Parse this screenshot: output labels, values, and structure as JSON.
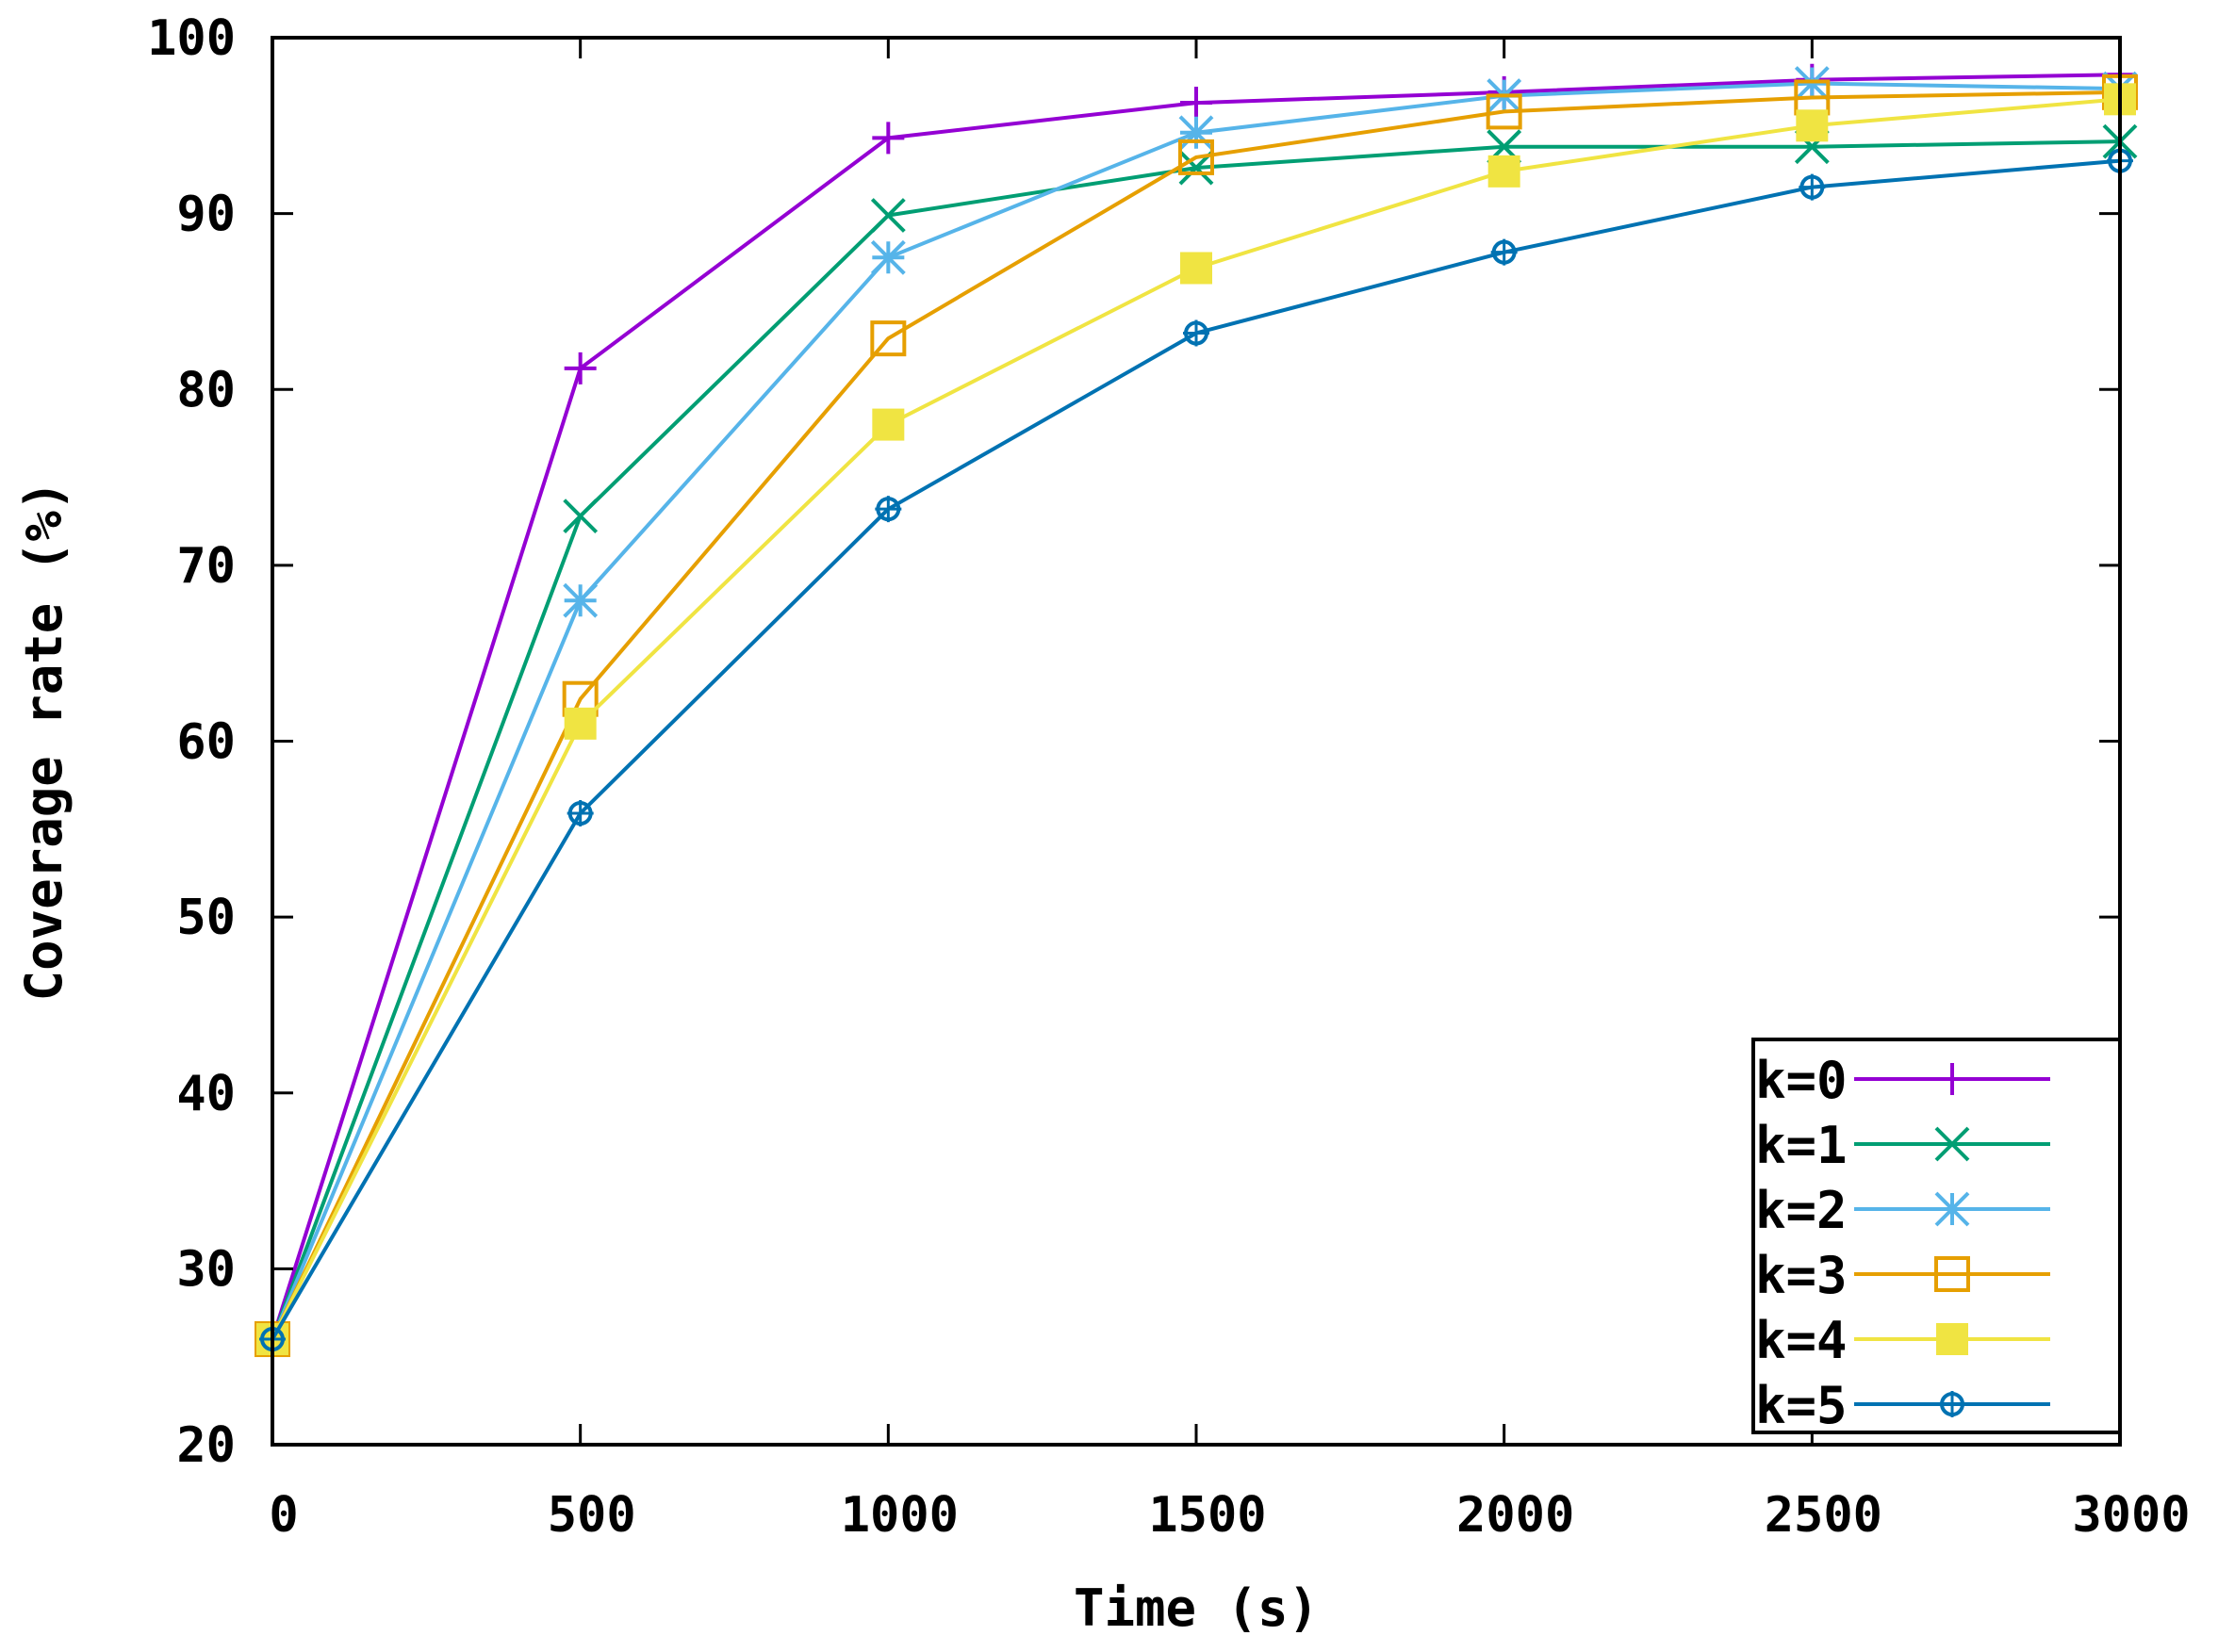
{
  "chart_data": {
    "type": "line",
    "title": "",
    "xlabel": "Time (s)",
    "ylabel": "Coverage rate (%)",
    "x": [
      0,
      500,
      1000,
      1500,
      2000,
      2500,
      3000
    ],
    "xlim": [
      0,
      3000
    ],
    "ylim": [
      20,
      100
    ],
    "xticks": [
      0,
      500,
      1000,
      1500,
      2000,
      2500,
      3000
    ],
    "yticks": [
      20,
      30,
      40,
      50,
      60,
      70,
      80,
      90,
      100
    ],
    "grid": false,
    "legend_position": "bottom-right",
    "series": [
      {
        "name": "k=0",
        "color": "#9400d3",
        "marker": "plus",
        "values": [
          26,
          81.2,
          94.3,
          96.3,
          96.9,
          97.6,
          97.9
        ]
      },
      {
        "name": "k=1",
        "color": "#009e73",
        "marker": "cross",
        "values": [
          26,
          72.8,
          89.9,
          92.6,
          93.8,
          93.8,
          94.1
        ]
      },
      {
        "name": "k=2",
        "color": "#56b4e9",
        "marker": "star",
        "values": [
          26,
          68,
          87.5,
          94.6,
          96.7,
          97.4,
          97.1
        ]
      },
      {
        "name": "k=3",
        "color": "#e69f00",
        "marker": "open-square",
        "values": [
          26,
          62.4,
          82.9,
          93.2,
          95.8,
          96.6,
          96.9
        ]
      },
      {
        "name": "k=4",
        "color": "#f0e442",
        "marker": "filled-square",
        "values": [
          26,
          61,
          78,
          86.9,
          92.4,
          95,
          96.5
        ]
      },
      {
        "name": "k=5",
        "color": "#0072b2",
        "marker": "open-circle",
        "values": [
          26,
          55.9,
          73.2,
          83.2,
          87.8,
          91.5,
          93
        ]
      }
    ]
  }
}
